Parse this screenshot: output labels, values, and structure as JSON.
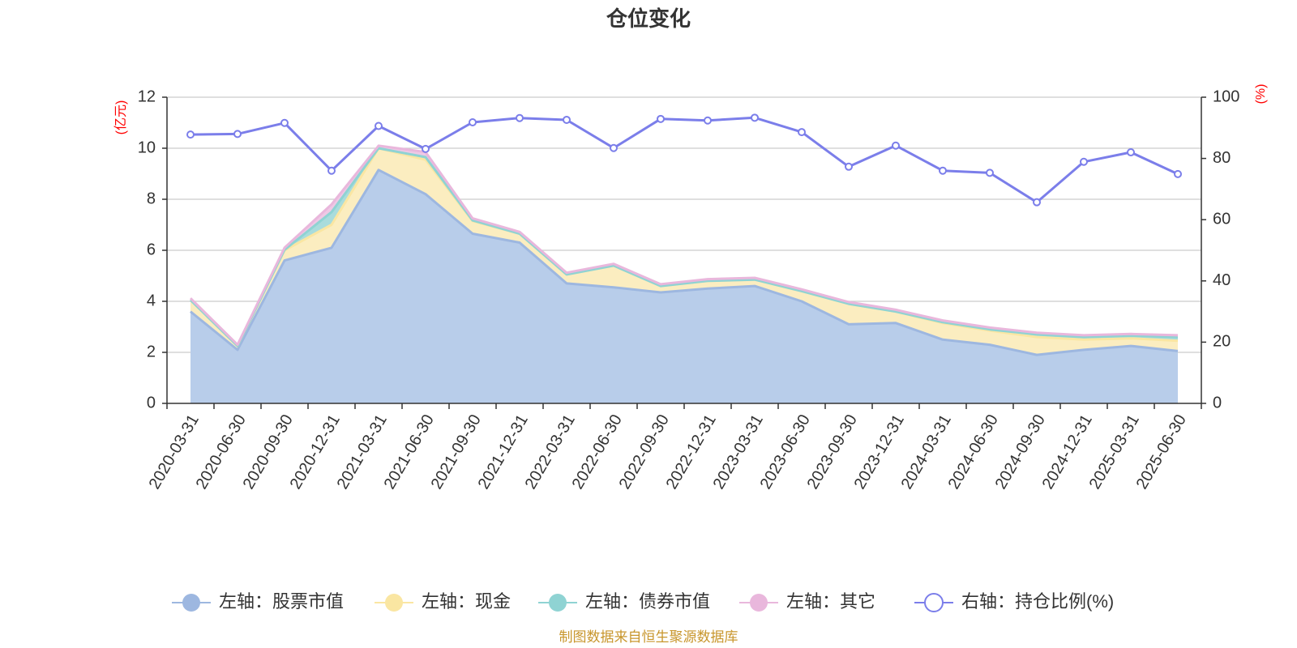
{
  "chart_data": {
    "type": "area",
    "title": "仓位变化",
    "left_axis_unit": "(亿元)",
    "right_axis_unit": "(%)",
    "x": [
      "2020-03-31",
      "2020-06-30",
      "2020-09-30",
      "2020-12-31",
      "2021-03-31",
      "2021-06-30",
      "2021-09-30",
      "2021-12-31",
      "2022-03-31",
      "2022-06-30",
      "2022-09-30",
      "2022-12-31",
      "2023-03-31",
      "2023-06-30",
      "2023-09-30",
      "2023-12-31",
      "2024-03-31",
      "2024-06-30",
      "2024-09-30",
      "2024-12-31",
      "2025-03-31",
      "2025-06-30"
    ],
    "left_ylim": [
      0,
      12
    ],
    "left_ticks": [
      "0",
      "2",
      "4",
      "6",
      "8",
      "10",
      "12"
    ],
    "right_ylim": [
      0,
      100
    ],
    "right_ticks": [
      "0",
      "20",
      "40",
      "60",
      "80",
      "100"
    ],
    "grid": true,
    "legend_position": "bottom",
    "series": [
      {
        "name": "左轴：股票市值",
        "axis": "left",
        "color": "#9db7e0",
        "fill": "#b8cdea",
        "values": [
          3.6,
          2.1,
          5.6,
          6.1,
          9.15,
          8.2,
          6.65,
          6.3,
          4.7,
          4.55,
          4.35,
          4.5,
          4.6,
          4.0,
          3.1,
          3.15,
          2.5,
          2.3,
          1.9,
          2.1,
          2.25,
          2.05
        ]
      },
      {
        "name": "左轴：现金",
        "axis": "left",
        "color": "#fae6a2",
        "fill": "#fbedc0",
        "values": [
          0.45,
          0.15,
          0.4,
          0.9,
          0.85,
          1.35,
          0.5,
          0.35,
          0.35,
          0.85,
          0.25,
          0.3,
          0.25,
          0.4,
          0.8,
          0.45,
          0.65,
          0.55,
          0.7,
          0.4,
          0.3,
          0.4
        ]
      },
      {
        "name": "左轴：债券市值",
        "axis": "left",
        "color": "#8fd3d3",
        "fill": "#a9dcdc",
        "values": [
          0,
          0,
          0.02,
          0.5,
          0,
          0.1,
          0.02,
          0,
          0,
          0,
          0,
          0,
          0,
          0,
          0,
          0,
          0.03,
          0.05,
          0.1,
          0.1,
          0.1,
          0.15
        ]
      },
      {
        "name": "左轴：其它",
        "axis": "left",
        "color": "#e9b7dc",
        "fill": "#efc8e5",
        "values": [
          0.07,
          0.05,
          0.08,
          0.3,
          0.1,
          0.2,
          0.08,
          0.07,
          0.07,
          0.07,
          0.07,
          0.07,
          0.07,
          0.07,
          0.07,
          0.07,
          0.07,
          0.07,
          0.07,
          0.07,
          0.07,
          0.07
        ]
      },
      {
        "name": "右轴：持仓比例(%)",
        "axis": "right",
        "color": "#7b7eea",
        "values": [
          87.8,
          88.0,
          91.6,
          76.0,
          90.6,
          83.1,
          91.8,
          93.2,
          92.6,
          83.4,
          92.9,
          92.4,
          93.3,
          88.6,
          77.3,
          84.2,
          76.0,
          75.3,
          65.7,
          78.9,
          82.0,
          74.9
        ]
      }
    ],
    "source": "制图数据来自恒生聚源数据库"
  }
}
